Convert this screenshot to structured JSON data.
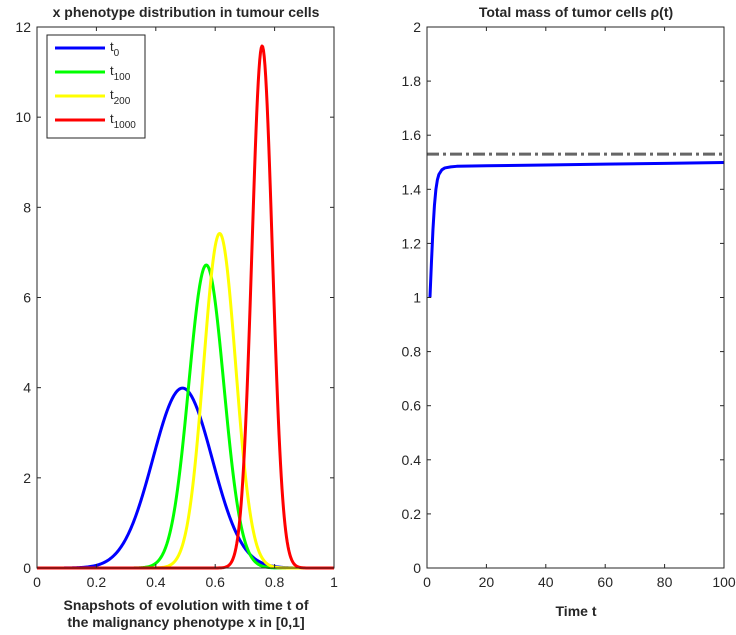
{
  "chart_data": [
    {
      "type": "line",
      "title": "x phenotype distribution in tumour cells",
      "xlabel_lines": [
        "Snapshots of evolution with time t of",
        "the malignancy phenotype x in [0,1]"
      ],
      "ylabel": "",
      "xlim": [
        0,
        1
      ],
      "ylim": [
        0,
        12
      ],
      "xticks": [
        "0",
        "0.2",
        "0.4",
        "0.6",
        "0.8",
        "1"
      ],
      "yticks": [
        "0",
        "2",
        "4",
        "6",
        "8",
        "10",
        "12"
      ],
      "grid": false,
      "legend_position": "top-left",
      "series": [
        {
          "name": "t",
          "name_sub": "0",
          "color": "#0000ff",
          "mean": 0.49,
          "sd": 0.1,
          "peak": 3.99
        },
        {
          "name": "t",
          "name_sub": "100",
          "color": "#00ff00",
          "mean": 0.57,
          "sd": 0.059,
          "peak": 6.72
        },
        {
          "name": "t",
          "name_sub": "200",
          "color": "#ffff00",
          "mean": 0.615,
          "sd": 0.054,
          "peak": 7.42
        },
        {
          "name": "t",
          "name_sub": "1000",
          "color": "#ff0000",
          "mean": 0.758,
          "sd": 0.0345,
          "peak": 11.58
        }
      ]
    },
    {
      "type": "line",
      "title": "Total mass of tumor cells ρ(t)",
      "xlabel": "Time t",
      "ylabel": "",
      "xlim": [
        0,
        100
      ],
      "ylim": [
        0,
        2
      ],
      "xticks": [
        "0",
        "20",
        "40",
        "60",
        "80",
        "100"
      ],
      "yticks": [
        "0",
        "0.2",
        "0.4",
        "0.6",
        "0.8",
        "1",
        "1.2",
        "1.4",
        "1.6",
        "1.8",
        "2"
      ],
      "grid": false,
      "series": [
        {
          "color": "#0000ff",
          "style": "solid",
          "x": [
            1,
            1.5,
            2,
            2.5,
            3,
            3.5,
            4,
            5,
            6,
            8,
            10,
            20,
            40,
            60,
            80,
            100
          ],
          "y": [
            1.0,
            1.13,
            1.25,
            1.34,
            1.4,
            1.435,
            1.455,
            1.472,
            1.479,
            1.483,
            1.485,
            1.487,
            1.49,
            1.493,
            1.496,
            1.499
          ]
        },
        {
          "color": "#666666",
          "style": "dash-dot",
          "x": [
            0,
            100
          ],
          "y": [
            1.53,
            1.53
          ]
        }
      ]
    }
  ]
}
